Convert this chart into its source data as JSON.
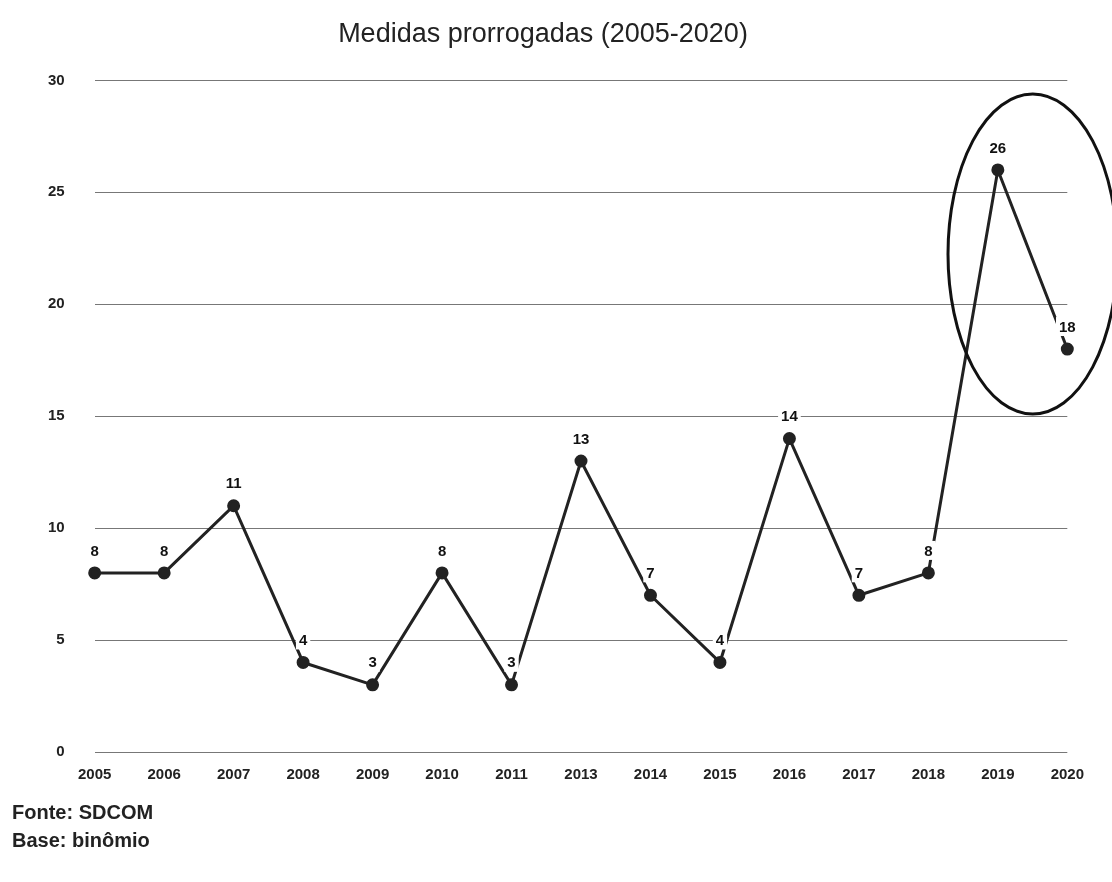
{
  "chart_data": {
    "type": "line",
    "title": "Medidas prorrogadas (2005-2020)",
    "categories": [
      "2005",
      "2006",
      "2007",
      "2008",
      "2009",
      "2010",
      "2011",
      "2013",
      "2014",
      "2015",
      "2016",
      "2017",
      "2018",
      "2019",
      "2020"
    ],
    "series": [
      {
        "color": "#222222",
        "values": [
          8,
          8,
          11,
          4,
          3,
          8,
          3,
          13,
          7,
          4,
          14,
          7,
          8,
          26,
          18
        ]
      }
    ],
    "ylim": [
      0,
      30
    ],
    "yticks": [
      0,
      5,
      10,
      15,
      20,
      25,
      30
    ],
    "grid": "y",
    "legend": false,
    "marker": "circle",
    "line_style": "solid",
    "data_labels": true,
    "annotations": [
      "Fonte: SDCOM",
      "Base: binômio"
    ]
  }
}
